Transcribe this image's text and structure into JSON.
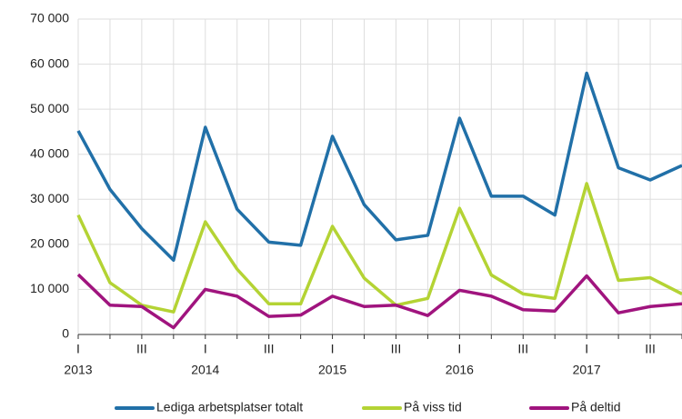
{
  "chart_data": {
    "type": "line",
    "categories": [
      "I",
      null,
      "III",
      null,
      "I",
      null,
      "III",
      null,
      "I",
      null,
      "III",
      null,
      "I",
      null,
      "III",
      null,
      "I",
      null,
      "III",
      null
    ],
    "year_labels": [
      "2013",
      "2014",
      "2015",
      "2016",
      "2017"
    ],
    "series": [
      {
        "name": "Lediga arbetsplatser totalt",
        "color": "#2170a8",
        "values": [
          45200,
          32200,
          23500,
          16500,
          46000,
          27800,
          20500,
          19800,
          44000,
          28800,
          21000,
          22000,
          48000,
          30700,
          30700,
          26500,
          58000,
          37000,
          34300,
          37500
        ]
      },
      {
        "name": "På viss tid",
        "color": "#b4d334",
        "values": [
          26500,
          11500,
          6500,
          5000,
          25000,
          14500,
          6800,
          6800,
          24000,
          12500,
          6500,
          8000,
          28000,
          13200,
          9000,
          8000,
          33500,
          12000,
          12600,
          9000
        ]
      },
      {
        "name": "På deltid",
        "color": "#a0147e",
        "values": [
          13300,
          6500,
          6200,
          1500,
          10000,
          8500,
          4000,
          4300,
          8500,
          6200,
          6500,
          4200,
          9800,
          8500,
          5500,
          5200,
          13000,
          4800,
          6200,
          6800
        ]
      }
    ],
    "ylim": [
      0,
      70000
    ],
    "yticks": [
      0,
      {
        "value": 10000,
        "label": "10 000"
      },
      {
        "value": 20000,
        "label": "20 000"
      },
      {
        "value": 30000,
        "label": "30 000"
      },
      {
        "value": 40000,
        "label": "40 000"
      },
      {
        "value": 50000,
        "label": "50 000"
      },
      {
        "value": 60000,
        "label": "60 000"
      },
      {
        "value": 70000,
        "label": "70 000"
      }
    ],
    "grid": true,
    "legend": "bottom"
  }
}
